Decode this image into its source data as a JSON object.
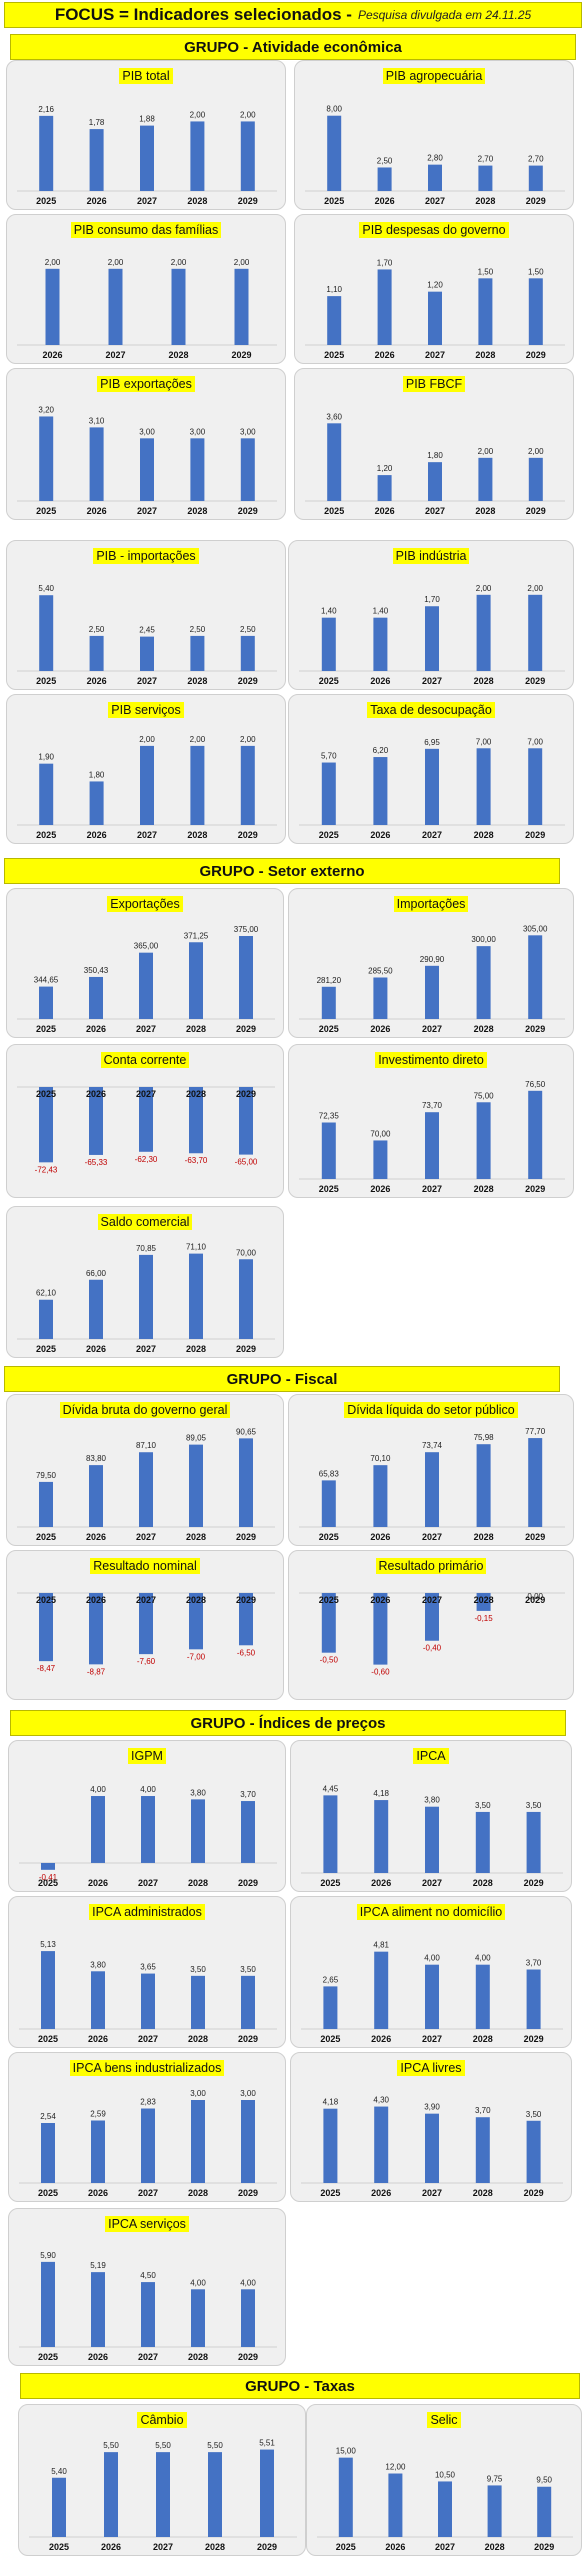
{
  "header": {
    "title": "FOCUS = Indicadores selecionados -",
    "subtitle": "Pesquisa divulgada em 24.11.25"
  },
  "groups": {
    "g1": "GRUPO - Atividade econômica",
    "g2": "GRUPO - Setor externo",
    "g3": "GRUPO - Fiscal",
    "g4": "GRUPO - Índices de preços",
    "g5": "GRUPO - Taxas"
  },
  "chart_data": [
    {
      "id": "pib_total",
      "type": "bar",
      "title": "PIB total",
      "categories": [
        "2025",
        "2026",
        "2027",
        "2028",
        "2029"
      ],
      "values": [
        2.16,
        1.78,
        1.88,
        2.0,
        2.0
      ],
      "labels": [
        "2,16",
        "1,78",
        "1,88",
        "2,00",
        "2,00"
      ],
      "ylim": [
        0,
        2.3
      ]
    },
    {
      "id": "pib_agro",
      "type": "bar",
      "title": "PIB agropecuária",
      "categories": [
        "2025",
        "2026",
        "2027",
        "2028",
        "2029"
      ],
      "values": [
        8.0,
        2.5,
        2.8,
        2.7,
        2.7
      ],
      "labels": [
        "8,00",
        "2,50",
        "2,80",
        "2,70",
        "2,70"
      ],
      "ylim": [
        0,
        8.5
      ]
    },
    {
      "id": "pib_consumo",
      "type": "bar",
      "title": "PIB consumo das famílias",
      "categories": [
        "2026",
        "2027",
        "2028",
        "2029"
      ],
      "values": [
        2.0,
        2.0,
        2.0,
        2.0
      ],
      "labels": [
        "2,00",
        "2,00",
        "2,00",
        "2,00"
      ],
      "ylim": [
        0,
        2.1
      ]
    },
    {
      "id": "pib_gov",
      "type": "bar",
      "title": "PIB despesas do governo",
      "categories": [
        "2025",
        "2026",
        "2027",
        "2028",
        "2029"
      ],
      "values": [
        1.1,
        1.7,
        1.2,
        1.5,
        1.5
      ],
      "labels": [
        "1,10",
        "1,70",
        "1,20",
        "1,50",
        "1,50"
      ],
      "ylim": [
        0,
        1.8
      ]
    },
    {
      "id": "pib_exp",
      "type": "bar",
      "title": "PIB exportações",
      "categories": [
        "2025",
        "2026",
        "2027",
        "2028",
        "2029"
      ],
      "values": [
        3.2,
        3.1,
        3.0,
        3.0,
        3.0
      ],
      "labels": [
        "3,20",
        "3,10",
        "3,00",
        "3,00",
        "3,00"
      ],
      "ylim": [
        2.5,
        3.25
      ]
    },
    {
      "id": "pib_fbcf",
      "type": "bar",
      "title": "PIB FBCF",
      "categories": [
        "2025",
        "2026",
        "2027",
        "2028",
        "2029"
      ],
      "values": [
        3.6,
        1.2,
        1.8,
        2.0,
        2.0
      ],
      "labels": [
        "3,60",
        "1,20",
        "1,80",
        "2,00",
        "2,00"
      ],
      "ylim": [
        0,
        3.8
      ]
    },
    {
      "id": "pib_imp",
      "type": "bar",
      "title": "PIB - importações",
      "categories": [
        "2025",
        "2026",
        "2027",
        "2028",
        "2029"
      ],
      "values": [
        5.4,
        2.5,
        2.45,
        2.5,
        2.5
      ],
      "labels": [
        "5,40",
        "2,50",
        "2,45",
        "2,50",
        "2,50"
      ],
      "ylim": [
        0,
        5.7
      ]
    },
    {
      "id": "pib_ind",
      "type": "bar",
      "title": "PIB indústria",
      "categories": [
        "2025",
        "2026",
        "2027",
        "2028",
        "2029"
      ],
      "values": [
        1.4,
        1.4,
        1.7,
        2.0,
        2.0
      ],
      "labels": [
        "1,40",
        "1,40",
        "1,70",
        "2,00",
        "2,00"
      ],
      "ylim": [
        0,
        2.1
      ]
    },
    {
      "id": "pib_serv",
      "type": "bar",
      "title": "PIB serviços",
      "categories": [
        "2025",
        "2026",
        "2027",
        "2028",
        "2029"
      ],
      "values": [
        1.9,
        1.8,
        2.0,
        2.0,
        2.0
      ],
      "labels": [
        "1,90",
        "1,80",
        "2,00",
        "2,00",
        "2,00"
      ],
      "ylim": [
        1.6,
        2.05
      ]
    },
    {
      "id": "desocup",
      "type": "bar",
      "title": "Taxa de desocupação",
      "categories": [
        "2025",
        "2026",
        "2027",
        "2028",
        "2029"
      ],
      "values": [
        5.7,
        6.2,
        6.95,
        7.0,
        7.0
      ],
      "labels": [
        "5,70",
        "6,20",
        "6,95",
        "7,00",
        "7,00"
      ],
      "ylim": [
        0,
        7.3
      ]
    },
    {
      "id": "export",
      "type": "bar",
      "title": "Exportações",
      "categories": [
        "2025",
        "2026",
        "2027",
        "2028",
        "2029"
      ],
      "values": [
        344.65,
        350.43,
        365.0,
        371.25,
        375.0
      ],
      "labels": [
        "344,65",
        "350,43",
        "365,00",
        "371,25",
        "375,00"
      ],
      "ylim": [
        330,
        378
      ]
    },
    {
      "id": "import",
      "type": "bar",
      "title": "Importações",
      "categories": [
        "2025",
        "2026",
        "2027",
        "2028",
        "2029"
      ],
      "values": [
        281.2,
        285.5,
        290.9,
        300.0,
        305.0
      ],
      "labels": [
        "281,20",
        "285,50",
        "290,90",
        "300,00",
        "305,00"
      ],
      "ylim": [
        270,
        307
      ]
    },
    {
      "id": "conta_corrente",
      "type": "bar",
      "title": "Conta corrente",
      "categories": [
        "2025",
        "2026",
        "2027",
        "2028",
        "2029"
      ],
      "values": [
        -72.43,
        -65.33,
        -62.3,
        -63.7,
        -65.0
      ],
      "labels": [
        "-72,43",
        "-65,33",
        "-62,30",
        "-63,70",
        "-65,00"
      ],
      "ylim": [
        -75,
        0
      ]
    },
    {
      "id": "idp",
      "type": "bar",
      "title": "Investimento direto",
      "categories": [
        "2025",
        "2026",
        "2027",
        "2028",
        "2029"
      ],
      "values": [
        72.35,
        70.0,
        73.7,
        75.0,
        76.5
      ],
      "labels": [
        "72,35",
        "70,00",
        "73,70",
        "75,00",
        "76,50"
      ],
      "ylim": [
        66,
        77
      ]
    },
    {
      "id": "saldo",
      "type": "bar",
      "title": "Saldo comercial",
      "categories": [
        "2025",
        "2026",
        "2027",
        "2028",
        "2029"
      ],
      "values": [
        62.1,
        66.0,
        70.85,
        71.1,
        70.0
      ],
      "labels": [
        "62,10",
        "66,00",
        "70,85",
        "71,10",
        "70,00"
      ],
      "ylim": [
        56,
        72
      ]
    },
    {
      "id": "divida_bruta",
      "type": "bar",
      "title": "Dívida bruta do governo geral",
      "categories": [
        "2025",
        "2026",
        "2027",
        "2028",
        "2029"
      ],
      "values": [
        79.5,
        83.8,
        87.1,
        89.05,
        90.65
      ],
      "labels": [
        "79,50",
        "83,80",
        "87,10",
        "89,05",
        "90,65"
      ],
      "ylim": [
        70,
        91
      ]
    },
    {
      "id": "divida_liquida",
      "type": "bar",
      "title": "Dívida líquida do setor público",
      "categories": [
        "2025",
        "2026",
        "2027",
        "2028",
        "2029"
      ],
      "values": [
        65.83,
        70.1,
        73.74,
        75.98,
        77.7
      ],
      "labels": [
        "65,83",
        "70,10",
        "73,74",
        "75,98",
        "77,70"
      ],
      "ylim": [
        55,
        78
      ]
    },
    {
      "id": "res_nominal",
      "type": "bar",
      "title": "Resultado nominal",
      "categories": [
        "2025",
        "2026",
        "2027",
        "2028",
        "2029"
      ],
      "values": [
        -8.47,
        -8.87,
        -7.6,
        -7.0,
        -6.5
      ],
      "labels": [
        "-8,47",
        "-8,87",
        "-7,60",
        "-7,00",
        "-6,50"
      ],
      "ylim": [
        -9.2,
        0
      ]
    },
    {
      "id": "res_primario",
      "type": "bar",
      "title": "Resultado primário",
      "categories": [
        "2025",
        "2026",
        "2027",
        "2028",
        "2029"
      ],
      "values": [
        -0.5,
        -0.6,
        -0.4,
        -0.15,
        0.0
      ],
      "labels": [
        "-0,50",
        "-0,60",
        "-0,40",
        "-0,15",
        "0,00"
      ],
      "ylim": [
        -0.62,
        0
      ]
    },
    {
      "id": "igpm",
      "type": "bar",
      "title": "IGPM",
      "categories": [
        "2025",
        "2026",
        "2027",
        "2028",
        "2029"
      ],
      "values": [
        -0.41,
        4.0,
        4.0,
        3.8,
        3.7
      ],
      "labels": [
        "-0,41",
        "4,00",
        "4,00",
        "3,80",
        "3,70"
      ],
      "ylim": [
        -0.6,
        4.3
      ]
    },
    {
      "id": "ipca",
      "type": "bar",
      "title": "IPCA",
      "categories": [
        "2025",
        "2026",
        "2027",
        "2028",
        "2029"
      ],
      "values": [
        4.45,
        4.18,
        3.8,
        3.5,
        3.5
      ],
      "labels": [
        "4,45",
        "4,18",
        "3,80",
        "3,50",
        "3,50"
      ],
      "ylim": [
        0,
        4.7
      ]
    },
    {
      "id": "ipca_adm",
      "type": "bar",
      "title": "IPCA administrados",
      "categories": [
        "2025",
        "2026",
        "2027",
        "2028",
        "2029"
      ],
      "values": [
        5.13,
        3.8,
        3.65,
        3.5,
        3.5
      ],
      "labels": [
        "5,13",
        "3,80",
        "3,65",
        "3,50",
        "3,50"
      ],
      "ylim": [
        0,
        5.4
      ]
    },
    {
      "id": "ipca_alim",
      "type": "bar",
      "title": "IPCA aliment no domicílio",
      "categories": [
        "2025",
        "2026",
        "2027",
        "2028",
        "2029"
      ],
      "values": [
        2.65,
        4.81,
        4.0,
        4.0,
        3.7
      ],
      "labels": [
        "2,65",
        "4,81",
        "4,00",
        "4,00",
        "3,70"
      ],
      "ylim": [
        0,
        5.1
      ]
    },
    {
      "id": "ipca_ind",
      "type": "bar",
      "title": "IPCA bens industrializados",
      "categories": [
        "2025",
        "2026",
        "2027",
        "2028",
        "2029"
      ],
      "values": [
        2.54,
        2.59,
        2.83,
        3.0,
        3.0
      ],
      "labels": [
        "2,54",
        "2,59",
        "2,83",
        "3,00",
        "3,00"
      ],
      "ylim": [
        1.5,
        3.1
      ]
    },
    {
      "id": "ipca_livres",
      "type": "bar",
      "title": "IPCA livres",
      "categories": [
        "2025",
        "2026",
        "2027",
        "2028",
        "2029"
      ],
      "values": [
        4.18,
        4.3,
        3.9,
        3.7,
        3.5
      ],
      "labels": [
        "4,18",
        "4,30",
        "3,90",
        "3,70",
        "3,50"
      ],
      "ylim": [
        0,
        4.5
      ]
    },
    {
      "id": "ipca_serv",
      "type": "bar",
      "title": "IPCA serviços",
      "categories": [
        "2025",
        "2026",
        "2027",
        "2028",
        "2029"
      ],
      "values": [
        5.9,
        5.19,
        4.5,
        4.0,
        4.0
      ],
      "labels": [
        "5,90",
        "5,19",
        "4,50",
        "4,00",
        "4,00"
      ],
      "ylim": [
        0,
        6.1
      ]
    },
    {
      "id": "cambio",
      "type": "bar",
      "title": "Câmbio",
      "categories": [
        "2025",
        "2026",
        "2027",
        "2028",
        "2029"
      ],
      "values": [
        5.4,
        5.5,
        5.5,
        5.5,
        5.51
      ],
      "labels": [
        "5,40",
        "5,50",
        "5,50",
        "5,50",
        "5,51"
      ],
      "ylim": [
        5.2,
        5.52
      ]
    },
    {
      "id": "selic",
      "type": "bar",
      "title": "Selic",
      "categories": [
        "2025",
        "2026",
        "2027",
        "2028",
        "2029"
      ],
      "values": [
        15.0,
        12.0,
        10.5,
        9.75,
        9.5
      ],
      "labels": [
        "15,00",
        "12,00",
        "10,50",
        "9,75",
        "9,50"
      ],
      "ylim": [
        0,
        15.5
      ]
    }
  ]
}
